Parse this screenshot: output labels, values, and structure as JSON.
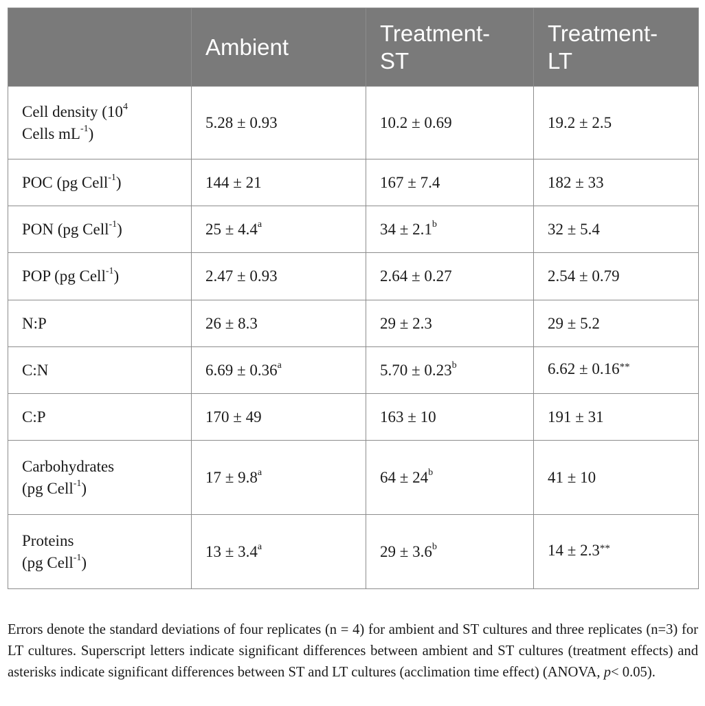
{
  "table": {
    "headers": [
      "",
      "Ambient",
      "Treatment-ST",
      "Treatment-LT"
    ],
    "header_lines": {
      "ambient": "Ambient",
      "st_line1": "Treatment-",
      "st_line2": "ST",
      "lt_line1": "Treatment-",
      "lt_line2": "LT"
    },
    "rows": [
      {
        "label_line1": "Cell density (10",
        "label_sup1": "4",
        "label_line2": "Cells mL",
        "label_sup2": "-1",
        "label_end": ")",
        "ambient": "5.28 ± 0.93",
        "st": "10.2 ± 0.69",
        "lt": "19.2 ± 2.5"
      },
      {
        "label": "POC (pg Cell",
        "label_sup": "-1",
        "label_end": ")",
        "ambient": "144 ± 21",
        "st": "167 ± 7.4",
        "lt": "182 ± 33"
      },
      {
        "label": "PON (pg Cell",
        "label_sup": "-1",
        "label_end": ")",
        "ambient": "25 ± 4.4",
        "ambient_sup": "a",
        "st": "34 ± 2.1",
        "st_sup": "b",
        "lt": "32 ± 5.4"
      },
      {
        "label": "POP (pg Cell",
        "label_sup": "-1",
        "label_end": ")",
        "ambient": "2.47 ± 0.93",
        "st": "2.64 ± 0.27",
        "lt": "2.54 ± 0.79"
      },
      {
        "label": "N:P",
        "ambient": "26 ± 8.3",
        "st": "29 ± 2.3",
        "lt": "29 ± 5.2"
      },
      {
        "label": "C:N",
        "ambient": "6.69 ± 0.36",
        "ambient_sup": "a",
        "st": "5.70 ± 0.23",
        "st_sup": "b",
        "lt": "6.62 ± 0.16",
        "lt_mark": "**"
      },
      {
        "label": "C:P",
        "ambient": "170 ± 49",
        "st": "163 ± 10",
        "lt": "191 ± 31"
      },
      {
        "label_line1": "Carbohydrates",
        "label_line2": "(pg Cell",
        "label_sup2": "-1",
        "label_end": ")",
        "ambient": "17 ± 9.8",
        "ambient_sup": "a",
        "st": "64 ± 24",
        "st_sup": "b",
        "lt": "41 ± 10"
      },
      {
        "label_line1": "Proteins",
        "label_line2": "(pg Cell",
        "label_sup2": "-1",
        "label_end": ")",
        "ambient": "13 ± 3.4",
        "ambient_sup": "a",
        "st": "29 ± 3.6",
        "st_sup": "b",
        "lt": "14 ± 2.3",
        "lt_mark": "**"
      }
    ]
  },
  "footnote": {
    "text_before_p": "Errors denote the standard deviations of four replicates (n = 4) for ambient and ST cultures and three replicates (n=3) for LT cultures. Superscript letters indicate significant differences between ambient and ST cultures (treatment effects) and asterisks indicate significant differences between ST and LT cultures (acclimation time effect) (ANOVA, ",
    "p_symbol": "p",
    "text_after_p": "< 0.05)."
  },
  "colors": {
    "header_bg": "#7a7a7a",
    "header_text": "#ffffff",
    "border": "#8c8c8c",
    "text": "#1a1a1a"
  }
}
